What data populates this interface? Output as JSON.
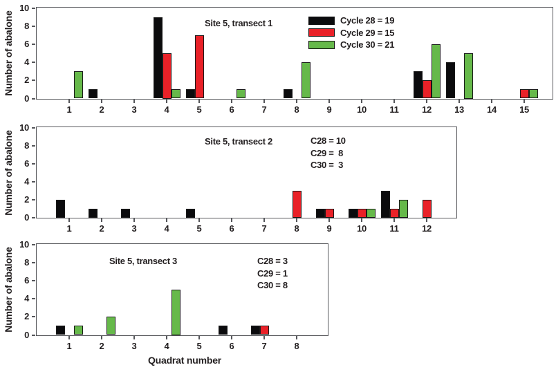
{
  "figure": {
    "xlabel": "Quadrat number"
  },
  "colors": {
    "cycle28": "#0b0b0d",
    "cycle29": "#e92128",
    "cycle30": "#66b94a"
  },
  "chart_data": [
    {
      "type": "bar",
      "title": "Site 5, transect 1",
      "ylabel": "Number of abalone",
      "ylim": [
        0,
        10
      ],
      "yticks": [
        0,
        2,
        4,
        6,
        8,
        10
      ],
      "grid": false,
      "categories": [
        1,
        2,
        3,
        4,
        5,
        6,
        7,
        8,
        9,
        10,
        11,
        12,
        13,
        14,
        15
      ],
      "series": [
        {
          "name": "Cycle 28",
          "color": "cycle28",
          "total": 19,
          "values": [
            0,
            1,
            0,
            9,
            1,
            0,
            0,
            1,
            0,
            0,
            0,
            3,
            4,
            0,
            0
          ]
        },
        {
          "name": "Cycle 29",
          "color": "cycle29",
          "total": 15,
          "values": [
            0,
            0,
            0,
            5,
            7,
            0,
            0,
            0,
            0,
            0,
            0,
            2,
            0,
            0,
            1
          ]
        },
        {
          "name": "Cycle 30",
          "color": "cycle30",
          "total": 21,
          "values": [
            3,
            0,
            0,
            1,
            0,
            1,
            0,
            4,
            0,
            0,
            0,
            6,
            5,
            0,
            1
          ]
        }
      ],
      "legend": {
        "position": "inside-top-center",
        "entries": [
          "Cycle 28 = 19",
          "Cycle 29 = 15",
          "Cycle 30 = 21"
        ]
      }
    },
    {
      "type": "bar",
      "title": "Site 5, transect 2",
      "ylabel": "Number of abalone",
      "ylim": [
        0,
        10
      ],
      "yticks": [
        0,
        2,
        4,
        6,
        8,
        10
      ],
      "grid": false,
      "categories": [
        1,
        2,
        3,
        4,
        5,
        6,
        7,
        8,
        9,
        10,
        11,
        12
      ],
      "series": [
        {
          "name": "Cycle 28",
          "color": "cycle28",
          "total": 10,
          "values": [
            2,
            1,
            1,
            0,
            1,
            0,
            0,
            0,
            1,
            1,
            3,
            0
          ]
        },
        {
          "name": "Cycle 29",
          "color": "cycle29",
          "total": 8,
          "values": [
            0,
            0,
            0,
            0,
            0,
            0,
            0,
            3,
            1,
            1,
            1,
            2
          ]
        },
        {
          "name": "Cycle 30",
          "color": "cycle30",
          "total": 3,
          "values": [
            0,
            0,
            0,
            0,
            0,
            0,
            0,
            0,
            0,
            1,
            2,
            0
          ]
        }
      ],
      "annotation": [
        "C28 = 10",
        "C29 =  8",
        "C30 =  3"
      ]
    },
    {
      "type": "bar",
      "title": "Site 5, transect 3",
      "ylabel": "Number of abalone",
      "ylim": [
        0,
        10
      ],
      "yticks": [
        0,
        2,
        4,
        6,
        8,
        10
      ],
      "grid": false,
      "categories": [
        1,
        2,
        3,
        4,
        5,
        6,
        7,
        8
      ],
      "series": [
        {
          "name": "Cycle 28",
          "color": "cycle28",
          "total": 3,
          "values": [
            1,
            0,
            0,
            0,
            0,
            1,
            1,
            0
          ]
        },
        {
          "name": "Cycle 29",
          "color": "cycle29",
          "total": 1,
          "values": [
            0,
            0,
            0,
            0,
            0,
            0,
            1,
            0
          ]
        },
        {
          "name": "Cycle 30",
          "color": "cycle30",
          "total": 8,
          "values": [
            1,
            2,
            0,
            5,
            0,
            0,
            0,
            0
          ]
        }
      ],
      "annotation": [
        "C28 = 3",
        "C29 = 1",
        "C30 = 8"
      ]
    }
  ]
}
